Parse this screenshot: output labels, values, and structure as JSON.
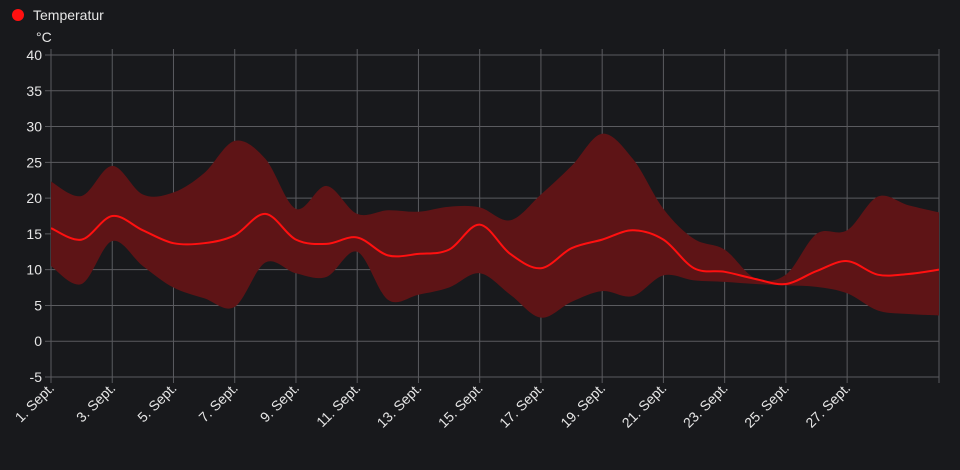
{
  "chart_data": {
    "type": "line",
    "y_label": "°C",
    "categories": [
      "1. Sept.",
      null,
      "3. Sept.",
      null,
      "5. Sept.",
      null,
      "7. Sept.",
      null,
      "9. Sept.",
      null,
      "11. Sept.",
      null,
      "13. Sept.",
      null,
      "15. Sept.",
      null,
      "17. Sept.",
      null,
      "19. Sept.",
      null,
      "21. Sept.",
      null,
      "23. Sept.",
      null,
      "25. Sept.",
      null,
      "27. Sept.",
      null,
      null,
      null
    ],
    "series": [
      {
        "name": "Temperatur",
        "color": "#ff1010",
        "band_color": "#5e1416",
        "values": [
          15.8,
          14.2,
          17.5,
          15.5,
          13.7,
          13.7,
          14.8,
          17.8,
          14.2,
          13.6,
          14.5,
          12,
          12.2,
          12.8,
          16.3,
          12.2,
          10.2,
          13,
          14.2,
          15.5,
          14.2,
          10.2,
          9.7,
          8.7,
          8,
          9.8,
          11.2,
          9.3,
          9.4,
          10
        ],
        "high": [
          22.3,
          20.3,
          24.5,
          20.5,
          20.8,
          23.5,
          28,
          25.5,
          18.5,
          21.7,
          17.8,
          18.3,
          18.1,
          18.8,
          18.7,
          16.9,
          20.5,
          24.5,
          29,
          25.5,
          18.5,
          14.3,
          12.8,
          8.8,
          9.3,
          15,
          15.5,
          20.2,
          19,
          18
        ],
        "low": [
          10.5,
          8,
          14,
          10.5,
          7.5,
          6,
          4.8,
          11,
          9.5,
          9,
          12.5,
          5.8,
          6.5,
          7.5,
          9.5,
          6.5,
          3.3,
          5.5,
          7,
          6.3,
          9.2,
          8.5,
          8.3,
          8,
          7.8,
          7.6,
          6.7,
          4.3,
          3.8,
          3.6
        ]
      }
    ],
    "ylim": [
      -5,
      40
    ],
    "yticks": [
      -5,
      0,
      5,
      10,
      15,
      20,
      25,
      30,
      35,
      40
    ],
    "grid": true
  }
}
